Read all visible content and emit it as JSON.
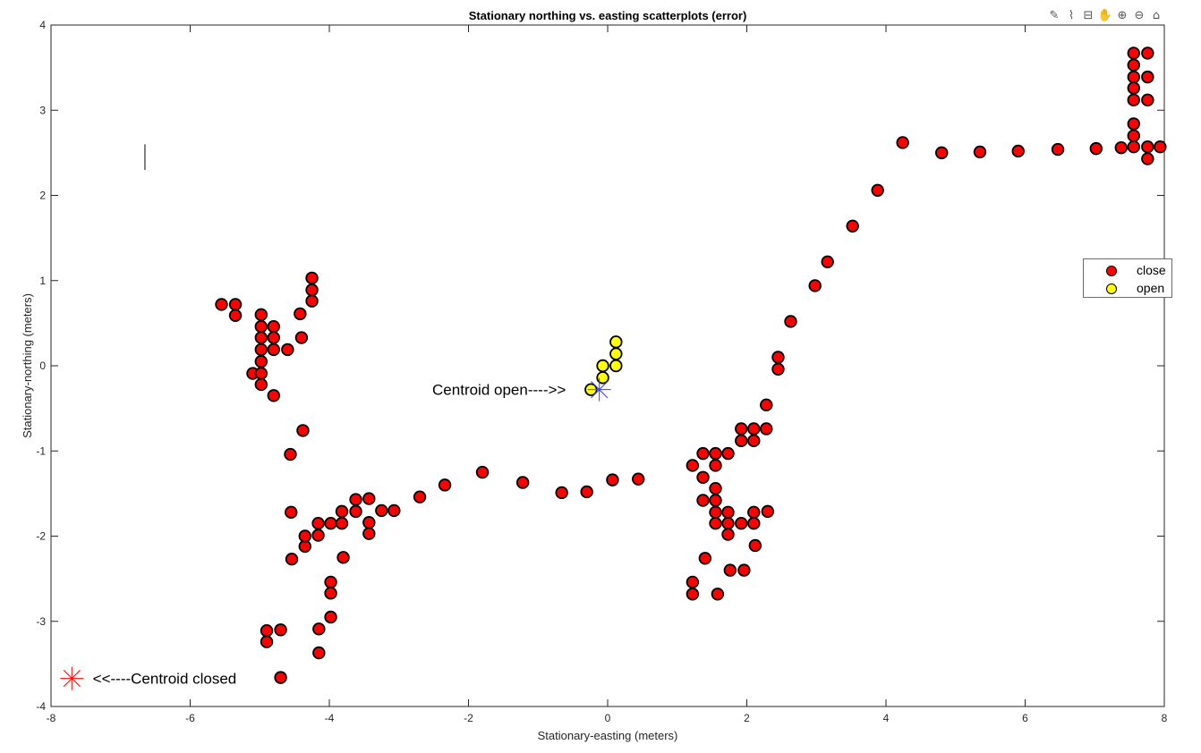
{
  "toolbar": {
    "icons": [
      "edit-icon",
      "brush-icon",
      "datatip-icon",
      "pan-icon",
      "zoom-in-icon",
      "zoom-out-icon",
      "home-icon"
    ]
  },
  "colors": {
    "close": "#ff0000",
    "open": "#ffff00",
    "centroid_closed": "#ff0000",
    "centroid_open": "#3b3bff"
  },
  "chart_data": {
    "type": "scatter",
    "title": "Stationary northing vs. easting scatterplots (error)",
    "xlabel": "Stationary-easting (meters)",
    "ylabel": "Stationary-northing (meters)",
    "xlim": [
      -8,
      8
    ],
    "ylim": [
      -4,
      4
    ],
    "xticks": [
      "-8",
      "-6",
      "-4",
      "-2",
      "0",
      "2",
      "4",
      "6",
      "8"
    ],
    "yticks": [
      "-4",
      "-3",
      "-2",
      "-1",
      "0",
      "1",
      "2",
      "3",
      "4"
    ],
    "legend": {
      "position": "right",
      "entries": [
        "close",
        "open"
      ]
    },
    "series": [
      {
        "name": "close",
        "color": "#ff0000",
        "points": [
          [
            -5.55,
            0.72
          ],
          [
            -5.35,
            0.72
          ],
          [
            -5.35,
            0.59
          ],
          [
            -5.1,
            -0.09
          ],
          [
            -4.98,
            0.6
          ],
          [
            -4.98,
            0.46
          ],
          [
            -4.98,
            0.33
          ],
          [
            -4.98,
            0.19
          ],
          [
            -4.98,
            0.05
          ],
          [
            -4.98,
            -0.09
          ],
          [
            -4.98,
            -0.22
          ],
          [
            -4.8,
            0.46
          ],
          [
            -4.8,
            0.33
          ],
          [
            -4.8,
            0.19
          ],
          [
            -4.8,
            -0.35
          ],
          [
            -4.6,
            0.19
          ],
          [
            -4.4,
            0.33
          ],
          [
            -4.42,
            0.61
          ],
          [
            -4.25,
            1.03
          ],
          [
            -4.25,
            0.89
          ],
          [
            -4.25,
            0.76
          ],
          [
            -4.38,
            -0.76
          ],
          [
            -4.56,
            -1.04
          ],
          [
            -4.55,
            -1.72
          ],
          [
            -4.54,
            -2.27
          ],
          [
            -4.35,
            -2.12
          ],
          [
            -4.35,
            -2.0
          ],
          [
            -4.16,
            -1.85
          ],
          [
            -4.16,
            -1.99
          ],
          [
            -3.98,
            -1.85
          ],
          [
            -3.82,
            -1.71
          ],
          [
            -3.82,
            -1.85
          ],
          [
            -3.8,
            -2.25
          ],
          [
            -3.62,
            -1.57
          ],
          [
            -3.62,
            -1.71
          ],
          [
            -3.43,
            -1.56
          ],
          [
            -3.43,
            -1.84
          ],
          [
            -3.43,
            -1.97
          ],
          [
            -3.25,
            -1.7
          ],
          [
            -3.07,
            -1.7
          ],
          [
            -2.7,
            -1.54
          ],
          [
            -2.34,
            -1.4
          ],
          [
            -1.8,
            -1.25
          ],
          [
            -1.22,
            -1.37
          ],
          [
            -0.66,
            -1.49
          ],
          [
            -0.3,
            -1.48
          ],
          [
            0.07,
            -1.34
          ],
          [
            0.44,
            -1.33
          ],
          [
            -3.98,
            -2.54
          ],
          [
            -3.98,
            -2.67
          ],
          [
            -3.98,
            -2.95
          ],
          [
            -4.15,
            -3.09
          ],
          [
            -4.15,
            -3.37
          ],
          [
            -4.9,
            -3.11
          ],
          [
            -4.9,
            -3.24
          ],
          [
            -4.7,
            -3.1
          ],
          [
            -4.7,
            -3.66
          ],
          [
            1.22,
            -1.17
          ],
          [
            1.37,
            -1.03
          ],
          [
            1.37,
            -1.31
          ],
          [
            1.37,
            -1.58
          ],
          [
            1.4,
            -2.26
          ],
          [
            1.22,
            -2.54
          ],
          [
            1.22,
            -2.68
          ],
          [
            1.55,
            -1.03
          ],
          [
            1.55,
            -1.17
          ],
          [
            1.55,
            -1.44
          ],
          [
            1.55,
            -1.58
          ],
          [
            1.55,
            -1.72
          ],
          [
            1.55,
            -1.85
          ],
          [
            1.58,
            -2.68
          ],
          [
            1.73,
            -1.03
          ],
          [
            1.73,
            -1.72
          ],
          [
            1.73,
            -1.85
          ],
          [
            1.73,
            -1.98
          ],
          [
            1.76,
            -2.4
          ],
          [
            1.92,
            -0.74
          ],
          [
            1.92,
            -0.88
          ],
          [
            1.92,
            -1.85
          ],
          [
            1.96,
            -2.4
          ],
          [
            2.1,
            -0.74
          ],
          [
            2.1,
            -0.88
          ],
          [
            2.1,
            -1.72
          ],
          [
            2.1,
            -1.85
          ],
          [
            2.12,
            -2.11
          ],
          [
            2.28,
            -0.74
          ],
          [
            2.28,
            -0.46
          ],
          [
            2.3,
            -1.71
          ],
          [
            2.45,
            -0.04
          ],
          [
            2.45,
            0.1
          ],
          [
            2.63,
            0.52
          ],
          [
            2.98,
            0.94
          ],
          [
            3.16,
            1.22
          ],
          [
            3.52,
            1.64
          ],
          [
            3.88,
            2.06
          ],
          [
            4.24,
            2.62
          ],
          [
            4.8,
            2.5
          ],
          [
            5.35,
            2.51
          ],
          [
            5.9,
            2.52
          ],
          [
            6.47,
            2.54
          ],
          [
            7.02,
            2.55
          ],
          [
            7.38,
            2.56
          ],
          [
            7.56,
            3.67
          ],
          [
            7.56,
            3.53
          ],
          [
            7.56,
            3.39
          ],
          [
            7.56,
            3.26
          ],
          [
            7.56,
            3.12
          ],
          [
            7.56,
            2.84
          ],
          [
            7.56,
            2.7
          ],
          [
            7.56,
            2.57
          ],
          [
            7.76,
            3.67
          ],
          [
            7.76,
            3.39
          ],
          [
            7.76,
            3.12
          ],
          [
            7.76,
            2.57
          ],
          [
            7.76,
            2.43
          ],
          [
            7.94,
            2.57
          ]
        ]
      },
      {
        "name": "open",
        "color": "#ffff00",
        "points": [
          [
            -0.24,
            -0.28
          ],
          [
            -0.07,
            -0.14
          ],
          [
            -0.07,
            0.0
          ],
          [
            0.12,
            0.0
          ],
          [
            0.12,
            0.14
          ],
          [
            0.12,
            0.28
          ]
        ]
      }
    ],
    "centroids": [
      {
        "x": -7.7,
        "y": -3.67,
        "color": "#ff0000"
      },
      {
        "x": -0.12,
        "y": -0.28,
        "color": "#3b3bff"
      }
    ],
    "annotations": [
      {
        "text": "<<----Centroid closed",
        "x": -7.4,
        "y": -3.67,
        "anchor": "start"
      },
      {
        "text": "Centroid open---->>",
        "x": -0.6,
        "y": -0.28,
        "anchor": "end"
      }
    ],
    "extra_mark": {
      "x": -6.65,
      "y1": 2.3,
      "y2": 2.6
    }
  }
}
